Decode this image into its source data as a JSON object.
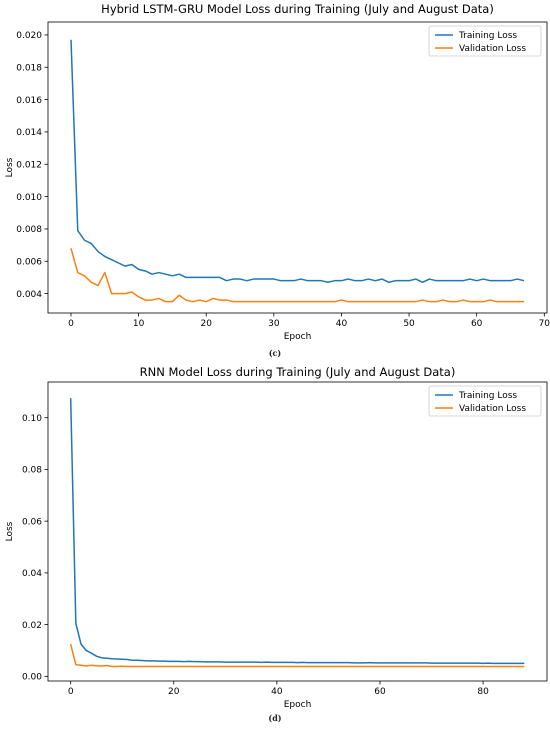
{
  "chart_data": [
    {
      "type": "line",
      "caption": "(c)",
      "title": "Hybrid LSTM-GRU Model Loss during Training (July and August Data)",
      "xlabel": "Epoch",
      "ylabel": "Loss",
      "xlim": [
        -3.4,
        70.4
      ],
      "ylim": [
        0.0028,
        0.0208
      ],
      "xticks": [
        0,
        10,
        20,
        30,
        40,
        50,
        60,
        70
      ],
      "yticks": [
        0.004,
        0.006,
        0.008,
        0.01,
        0.012,
        0.014,
        0.016,
        0.018,
        0.02
      ],
      "ytick_labels": [
        "0.004",
        "0.006",
        "0.008",
        "0.010",
        "0.012",
        "0.014",
        "0.016",
        "0.018",
        "0.020"
      ],
      "grid": false,
      "legend": "top-right",
      "series": [
        {
          "name": "Training Loss",
          "color": "#1f77b4",
          "values": [
            0.0197,
            0.0079,
            0.0073,
            0.0071,
            0.0066,
            0.0063,
            0.0061,
            0.0059,
            0.0057,
            0.0058,
            0.0055,
            0.0054,
            0.0052,
            0.0053,
            0.0052,
            0.0051,
            0.0052,
            0.005,
            0.005,
            0.005,
            0.005,
            0.005,
            0.005,
            0.0048,
            0.0049,
            0.0049,
            0.0048,
            0.0049,
            0.0049,
            0.0049,
            0.0049,
            0.0048,
            0.0048,
            0.0048,
            0.0049,
            0.0048,
            0.0048,
            0.0048,
            0.0047,
            0.0048,
            0.0048,
            0.0049,
            0.0048,
            0.0048,
            0.0049,
            0.0048,
            0.0049,
            0.0047,
            0.0048,
            0.0048,
            0.0048,
            0.0049,
            0.0047,
            0.0049,
            0.0048,
            0.0048,
            0.0048,
            0.0048,
            0.0048,
            0.0049,
            0.0048,
            0.0049,
            0.0048,
            0.0048,
            0.0048,
            0.0048,
            0.0049,
            0.0048
          ]
        },
        {
          "name": "Validation Loss",
          "color": "#ff7f0e",
          "values": [
            0.0068,
            0.0053,
            0.0051,
            0.0047,
            0.0045,
            0.0053,
            0.004,
            0.004,
            0.004,
            0.0041,
            0.0038,
            0.0036,
            0.0036,
            0.0037,
            0.0035,
            0.0035,
            0.0039,
            0.0036,
            0.0035,
            0.0036,
            0.0035,
            0.0037,
            0.0036,
            0.0036,
            0.0035,
            0.0035,
            0.0035,
            0.0035,
            0.0035,
            0.0035,
            0.0035,
            0.0035,
            0.0035,
            0.0035,
            0.0035,
            0.0035,
            0.0035,
            0.0035,
            0.0035,
            0.0035,
            0.0036,
            0.0035,
            0.0035,
            0.0035,
            0.0035,
            0.0035,
            0.0035,
            0.0035,
            0.0035,
            0.0035,
            0.0035,
            0.0035,
            0.0036,
            0.0035,
            0.0035,
            0.0036,
            0.0035,
            0.0035,
            0.0036,
            0.0035,
            0.0035,
            0.0035,
            0.0036,
            0.0035,
            0.0035,
            0.0035,
            0.0035,
            0.0035
          ]
        }
      ]
    },
    {
      "type": "line",
      "caption": "(d)",
      "title": "RNN Model Loss during Training (July and August Data)",
      "xlabel": "Epoch",
      "ylabel": "Loss",
      "xlim": [
        -4.4,
        92.4
      ],
      "ylim": [
        -0.0018,
        0.1138
      ],
      "xticks": [
        0,
        20,
        40,
        60,
        80
      ],
      "yticks": [
        0.0,
        0.02,
        0.04,
        0.06,
        0.08,
        0.1
      ],
      "ytick_labels": [
        "0.00",
        "0.02",
        "0.04",
        "0.06",
        "0.08",
        "0.10"
      ],
      "grid": false,
      "legend": "top-right",
      "series": [
        {
          "name": "Training Loss",
          "color": "#1f77b4",
          "values": [
            0.1075,
            0.0205,
            0.0125,
            0.01,
            0.009,
            0.0078,
            0.0072,
            0.007,
            0.0068,
            0.0067,
            0.0066,
            0.0065,
            0.0062,
            0.0062,
            0.0061,
            0.006,
            0.006,
            0.0059,
            0.0059,
            0.0058,
            0.0058,
            0.0058,
            0.0057,
            0.0058,
            0.0057,
            0.0057,
            0.0056,
            0.0056,
            0.0056,
            0.0056,
            0.0055,
            0.0055,
            0.0055,
            0.0055,
            0.0055,
            0.0055,
            0.0055,
            0.0054,
            0.0055,
            0.0054,
            0.0054,
            0.0054,
            0.0054,
            0.0054,
            0.0053,
            0.0054,
            0.0053,
            0.0053,
            0.0053,
            0.0053,
            0.0053,
            0.0053,
            0.0053,
            0.0053,
            0.0053,
            0.0052,
            0.0052,
            0.0052,
            0.0053,
            0.0052,
            0.0052,
            0.0052,
            0.0052,
            0.0052,
            0.0052,
            0.0052,
            0.0052,
            0.0052,
            0.0052,
            0.0052,
            0.0051,
            0.0051,
            0.0051,
            0.0051,
            0.0051,
            0.0051,
            0.0051,
            0.0051,
            0.0051,
            0.0051,
            0.005,
            0.0051,
            0.005,
            0.005,
            0.005,
            0.005,
            0.005,
            0.005,
            0.005
          ]
        },
        {
          "name": "Validation Loss",
          "color": "#ff7f0e",
          "values": [
            0.0125,
            0.0045,
            0.0043,
            0.004,
            0.0043,
            0.0041,
            0.004,
            0.0042,
            0.0038,
            0.0038,
            0.0039,
            0.0038,
            0.0038,
            0.0038,
            0.0038,
            0.0038,
            0.0038,
            0.0038,
            0.0038,
            0.0038,
            0.0038,
            0.0038,
            0.0038,
            0.0038,
            0.0038,
            0.0038,
            0.0038,
            0.0038,
            0.0038,
            0.0038,
            0.0038,
            0.0038,
            0.0038,
            0.0038,
            0.0038,
            0.0038,
            0.0038,
            0.0038,
            0.0038,
            0.0038,
            0.0038,
            0.0038,
            0.0038,
            0.0038,
            0.0038,
            0.0038,
            0.0038,
            0.0038,
            0.0038,
            0.0038,
            0.0038,
            0.0038,
            0.0038,
            0.0038,
            0.0038,
            0.0038,
            0.0038,
            0.0038,
            0.0038,
            0.0038,
            0.0038,
            0.0038,
            0.0038,
            0.0038,
            0.0038,
            0.0038,
            0.0038,
            0.0038,
            0.0038,
            0.0038,
            0.0038,
            0.0038,
            0.0038,
            0.0038,
            0.0038,
            0.0038,
            0.0038,
            0.0038,
            0.0038,
            0.0038,
            0.0038,
            0.0038,
            0.0038,
            0.0038,
            0.0038,
            0.0038,
            0.0038,
            0.0038,
            0.0038
          ]
        }
      ]
    }
  ]
}
